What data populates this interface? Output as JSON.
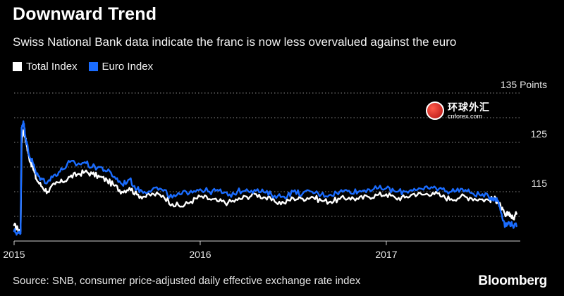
{
  "header": {
    "title": "Downward Trend",
    "subtitle": "Swiss National Bank data indicate the franc is now less overvalued against the euro"
  },
  "legend": {
    "items": [
      {
        "label": "Total Index",
        "color": "#ffffff"
      },
      {
        "label": "Euro Index",
        "color": "#1a6cff"
      }
    ]
  },
  "footer": {
    "source": "Source: SNB, consumer price-adjusted daily effective exchange rate index",
    "brand": "Bloomberg"
  },
  "watermark": {
    "cn": "环球外汇",
    "en": "cnforex.com"
  },
  "chart_data": {
    "type": "line",
    "title": "Downward Trend",
    "subtitle": "Swiss National Bank data indicate the franc is now less overvalued against the euro",
    "xlabel": "",
    "ylabel": "",
    "xlim": [
      2015.0,
      2017.72
    ],
    "ylim": [
      105,
      135
    ],
    "y_ticks": [
      {
        "value": 115,
        "label": "115"
      },
      {
        "value": 125,
        "label": "125"
      },
      {
        "value": 135,
        "label": "135 Points"
      }
    ],
    "x_ticks": [
      {
        "value": 2015,
        "label": "2015"
      },
      {
        "value": 2016,
        "label": "2016"
      },
      {
        "value": 2017,
        "label": "2017"
      }
    ],
    "grid": true,
    "legend_position": "top-left",
    "x": [
      2015.0,
      2015.02,
      2015.035,
      2015.04,
      2015.05,
      2015.06,
      2015.07,
      2015.08,
      2015.1,
      2015.12,
      2015.15,
      2015.18,
      2015.22,
      2015.26,
      2015.3,
      2015.34,
      2015.38,
      2015.42,
      2015.46,
      2015.5,
      2015.54,
      2015.58,
      2015.62,
      2015.66,
      2015.7,
      2015.75,
      2015.8,
      2015.85,
      2015.9,
      2015.95,
      2016.0,
      2016.05,
      2016.1,
      2016.15,
      2016.2,
      2016.25,
      2016.3,
      2016.35,
      2016.4,
      2016.45,
      2016.5,
      2016.55,
      2016.6,
      2016.65,
      2016.7,
      2016.75,
      2016.8,
      2016.85,
      2016.9,
      2016.95,
      2017.0,
      2017.05,
      2017.1,
      2017.15,
      2017.2,
      2017.25,
      2017.3,
      2017.35,
      2017.4,
      2017.45,
      2017.5,
      2017.55,
      2017.58,
      2017.6,
      2017.62,
      2017.64,
      2017.66,
      2017.68,
      2017.7
    ],
    "series": [
      {
        "name": "Total Index",
        "color": "#ffffff",
        "values": [
          108.2,
          107.4,
          107.0,
          125.0,
          127.5,
          126.0,
          124.0,
          122.0,
          120.0,
          117.5,
          116.0,
          115.0,
          116.5,
          117.0,
          118.0,
          118.5,
          119.0,
          118.6,
          118.0,
          117.3,
          116.2,
          115.0,
          115.8,
          114.4,
          114.0,
          114.5,
          114.2,
          112.5,
          112.0,
          113.0,
          114.0,
          113.5,
          113.0,
          112.8,
          113.3,
          114.0,
          114.5,
          113.8,
          113.0,
          112.7,
          113.7,
          113.6,
          114.0,
          113.2,
          113.0,
          113.5,
          113.8,
          113.5,
          114.0,
          114.3,
          114.5,
          113.7,
          113.8,
          114.6,
          114.4,
          114.8,
          114.0,
          113.5,
          114.0,
          113.8,
          113.5,
          113.3,
          113.6,
          113.0,
          111.5,
          110.0,
          110.8,
          109.5,
          110.5
        ]
      },
      {
        "name": "Euro Index",
        "color": "#1a6cff",
        "values": [
          107.0,
          106.6,
          106.5,
          128.0,
          129.3,
          126.5,
          124.5,
          122.5,
          121.0,
          118.5,
          117.5,
          117.0,
          118.5,
          119.5,
          121.0,
          120.5,
          121.0,
          120.0,
          120.0,
          119.2,
          118.0,
          116.5,
          117.5,
          115.5,
          115.0,
          115.8,
          115.2,
          113.8,
          114.5,
          115.2,
          115.5,
          115.0,
          115.2,
          114.2,
          115.0,
          115.5,
          115.2,
          114.8,
          114.2,
          114.0,
          115.0,
          114.6,
          115.0,
          114.4,
          114.4,
          115.0,
          115.2,
          115.0,
          115.5,
          115.6,
          115.7,
          115.0,
          115.0,
          115.6,
          115.4,
          115.8,
          115.5,
          115.0,
          115.6,
          114.8,
          114.4,
          114.0,
          113.7,
          113.2,
          110.5,
          108.0,
          108.8,
          108.2,
          108.0
        ]
      }
    ]
  }
}
